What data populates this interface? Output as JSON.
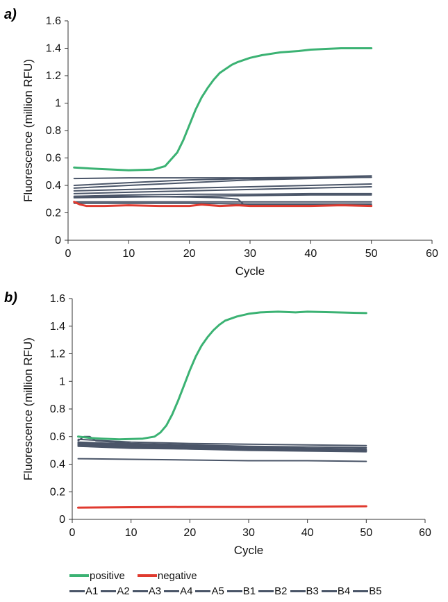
{
  "panels": [
    {
      "label": "a)",
      "chart_data": {
        "type": "line",
        "xlabel": "Cycle",
        "ylabel": "Fluorescence (million RFU)",
        "xlim": [
          0,
          60
        ],
        "ylim": [
          0,
          1.6
        ],
        "xticks": [
          "0",
          "10",
          "20",
          "30",
          "40",
          "50",
          "60"
        ],
        "yticks": [
          "0",
          "0.2",
          "0.4",
          "0.6",
          "0.8",
          "1",
          "1.2",
          "1.4",
          "1.6"
        ],
        "grid": false,
        "series": [
          {
            "name": "positive",
            "color": "#3bb273",
            "width": 3,
            "x": [
              1,
              5,
              10,
              14,
              16,
              18,
              19,
              20,
              21,
              22,
              23,
              24,
              25,
              26,
              27,
              28,
              30,
              32,
              35,
              38,
              40,
              45,
              48,
              50
            ],
            "y": [
              0.53,
              0.52,
              0.51,
              0.515,
              0.54,
              0.64,
              0.73,
              0.84,
              0.95,
              1.04,
              1.11,
              1.17,
              1.22,
              1.25,
              1.28,
              1.3,
              1.33,
              1.35,
              1.37,
              1.38,
              1.39,
              1.4,
              1.4,
              1.4
            ]
          },
          {
            "name": "negative",
            "color": "#e03a2f",
            "width": 3,
            "x": [
              1,
              2,
              3,
              6,
              10,
              15,
              20,
              22,
              25,
              28,
              30,
              35,
              40,
              45,
              50
            ],
            "y": [
              0.28,
              0.26,
              0.25,
              0.25,
              0.255,
              0.25,
              0.25,
              0.26,
              0.25,
              0.255,
              0.25,
              0.25,
              0.25,
              0.255,
              0.25
            ]
          },
          {
            "name": "A1",
            "color": "#4a5568",
            "width": 2,
            "x": [
              1,
              10,
              20,
              30,
              40,
              50
            ],
            "y": [
              0.45,
              0.455,
              0.455,
              0.455,
              0.46,
              0.47
            ]
          },
          {
            "name": "A2",
            "color": "#4a5568",
            "width": 2,
            "x": [
              1,
              10,
              20,
              30,
              40,
              50
            ],
            "y": [
              0.4,
              0.42,
              0.44,
              0.45,
              0.455,
              0.46
            ]
          },
          {
            "name": "A3",
            "color": "#4a5568",
            "width": 2,
            "x": [
              1,
              10,
              20,
              30,
              40,
              50
            ],
            "y": [
              0.38,
              0.4,
              0.42,
              0.44,
              0.45,
              0.46
            ]
          },
          {
            "name": "A4",
            "color": "#4a5568",
            "width": 2,
            "x": [
              1,
              10,
              20,
              30,
              40,
              50
            ],
            "y": [
              0.36,
              0.37,
              0.38,
              0.39,
              0.4,
              0.41
            ]
          },
          {
            "name": "A5",
            "color": "#4a5568",
            "width": 2,
            "x": [
              1,
              10,
              20,
              30,
              40,
              50
            ],
            "y": [
              0.34,
              0.35,
              0.36,
              0.37,
              0.38,
              0.39
            ]
          },
          {
            "name": "B1",
            "color": "#4a5568",
            "width": 2,
            "x": [
              1,
              10,
              20,
              30,
              40,
              50
            ],
            "y": [
              0.32,
              0.33,
              0.335,
              0.335,
              0.34,
              0.34
            ]
          },
          {
            "name": "B2",
            "color": "#4a5568",
            "width": 2,
            "x": [
              1,
              10,
              20,
              30,
              40,
              50
            ],
            "y": [
              0.31,
              0.315,
              0.32,
              0.325,
              0.33,
              0.33
            ]
          },
          {
            "name": "B3",
            "color": "#4a5568",
            "width": 2,
            "x": [
              1,
              10,
              20,
              25,
              28,
              29,
              30,
              40,
              50
            ],
            "y": [
              0.32,
              0.32,
              0.315,
              0.31,
              0.3,
              0.26,
              0.26,
              0.26,
              0.26
            ]
          },
          {
            "name": "B4",
            "color": "#4a5568",
            "width": 2,
            "x": [
              1,
              10,
              20,
              30,
              40,
              50
            ],
            "y": [
              0.28,
              0.28,
              0.28,
              0.28,
              0.28,
              0.28
            ]
          },
          {
            "name": "B5",
            "color": "#4a5568",
            "width": 2,
            "x": [
              1,
              10,
              20,
              30,
              40,
              50
            ],
            "y": [
              0.27,
              0.27,
              0.27,
              0.265,
              0.265,
              0.265
            ]
          }
        ]
      }
    },
    {
      "label": "b)",
      "chart_data": {
        "type": "line",
        "xlabel": "Cycle",
        "ylabel": "Fluorescence (million RFU)",
        "xlim": [
          0,
          60
        ],
        "ylim": [
          0,
          1.6
        ],
        "xticks": [
          "0",
          "10",
          "20",
          "30",
          "40",
          "50",
          "60"
        ],
        "yticks": [
          "0",
          "0.2",
          "0.4",
          "0.6",
          "0.8",
          "1",
          "1.2",
          "1.4",
          "1.6"
        ],
        "grid": false,
        "series": [
          {
            "name": "positive",
            "color": "#3bb273",
            "width": 3,
            "x": [
              1,
              3,
              5,
              8,
              12,
              14,
              15,
              16,
              17,
              18,
              19,
              20,
              21,
              22,
              23,
              24,
              25,
              26,
              28,
              30,
              32,
              35,
              38,
              40,
              45,
              50
            ],
            "y": [
              0.6,
              0.59,
              0.585,
              0.58,
              0.585,
              0.6,
              0.63,
              0.68,
              0.76,
              0.86,
              0.97,
              1.08,
              1.18,
              1.26,
              1.32,
              1.37,
              1.41,
              1.44,
              1.47,
              1.49,
              1.5,
              1.505,
              1.5,
              1.505,
              1.5,
              1.495
            ]
          },
          {
            "name": "negative",
            "color": "#e03a2f",
            "width": 3,
            "x": [
              1,
              10,
              20,
              30,
              40,
              50
            ],
            "y": [
              0.085,
              0.088,
              0.09,
              0.09,
              0.092,
              0.095
            ]
          },
          {
            "name": "A1",
            "color": "#4a5568",
            "width": 2,
            "x": [
              1,
              10,
              20,
              30,
              40,
              50
            ],
            "y": [
              0.58,
              0.56,
              0.55,
              0.545,
              0.54,
              0.535
            ]
          },
          {
            "name": "A2",
            "color": "#4a5568",
            "width": 2,
            "x": [
              1,
              2,
              3,
              4,
              10,
              20,
              30,
              40,
              50
            ],
            "y": [
              0.57,
              0.6,
              0.6,
              0.57,
              0.55,
              0.54,
              0.53,
              0.525,
              0.52
            ]
          },
          {
            "name": "A3",
            "color": "#4a5568",
            "width": 2,
            "x": [
              1,
              10,
              20,
              30,
              40,
              50
            ],
            "y": [
              0.56,
              0.545,
              0.535,
              0.525,
              0.515,
              0.51
            ]
          },
          {
            "name": "A4",
            "color": "#4a5568",
            "width": 2,
            "x": [
              1,
              10,
              20,
              30,
              40,
              50
            ],
            "y": [
              0.555,
              0.54,
              0.53,
              0.52,
              0.51,
              0.505
            ]
          },
          {
            "name": "A5",
            "color": "#4a5568",
            "width": 2,
            "x": [
              1,
              10,
              20,
              30,
              40,
              50
            ],
            "y": [
              0.55,
              0.535,
              0.525,
              0.515,
              0.505,
              0.5
            ]
          },
          {
            "name": "B1",
            "color": "#4a5568",
            "width": 2,
            "x": [
              1,
              10,
              20,
              30,
              40,
              50
            ],
            "y": [
              0.545,
              0.53,
              0.52,
              0.51,
              0.505,
              0.5
            ]
          },
          {
            "name": "B2",
            "color": "#4a5568",
            "width": 2,
            "x": [
              1,
              10,
              20,
              30,
              40,
              50
            ],
            "y": [
              0.54,
              0.525,
              0.515,
              0.505,
              0.5,
              0.495
            ]
          },
          {
            "name": "B3",
            "color": "#4a5568",
            "width": 2,
            "x": [
              1,
              10,
              20,
              30,
              40,
              50
            ],
            "y": [
              0.535,
              0.52,
              0.51,
              0.505,
              0.5,
              0.495
            ]
          },
          {
            "name": "B4",
            "color": "#4a5568",
            "width": 2,
            "x": [
              1,
              10,
              20,
              30,
              40,
              50
            ],
            "y": [
              0.53,
              0.515,
              0.51,
              0.5,
              0.495,
              0.49
            ]
          },
          {
            "name": "B5",
            "color": "#4a5568",
            "width": 2,
            "x": [
              1,
              10,
              20,
              30,
              40,
              50
            ],
            "y": [
              0.44,
              0.435,
              0.43,
              0.425,
              0.425,
              0.42
            ]
          }
        ]
      }
    }
  ],
  "legend": {
    "row1": [
      {
        "name": "positive",
        "color": "#3bb273"
      },
      {
        "name": "negative",
        "color": "#e03a2f"
      }
    ],
    "row2": [
      {
        "name": "A1",
        "color": "#4a5568"
      },
      {
        "name": "A2",
        "color": "#4a5568"
      },
      {
        "name": "A3",
        "color": "#4a5568"
      },
      {
        "name": "A4",
        "color": "#4a5568"
      },
      {
        "name": "A5",
        "color": "#4a5568"
      },
      {
        "name": "B1",
        "color": "#4a5568"
      },
      {
        "name": "B2",
        "color": "#4a5568"
      },
      {
        "name": "B3",
        "color": "#4a5568"
      },
      {
        "name": "B4",
        "color": "#4a5568"
      },
      {
        "name": "B5",
        "color": "#4a5568"
      }
    ]
  }
}
